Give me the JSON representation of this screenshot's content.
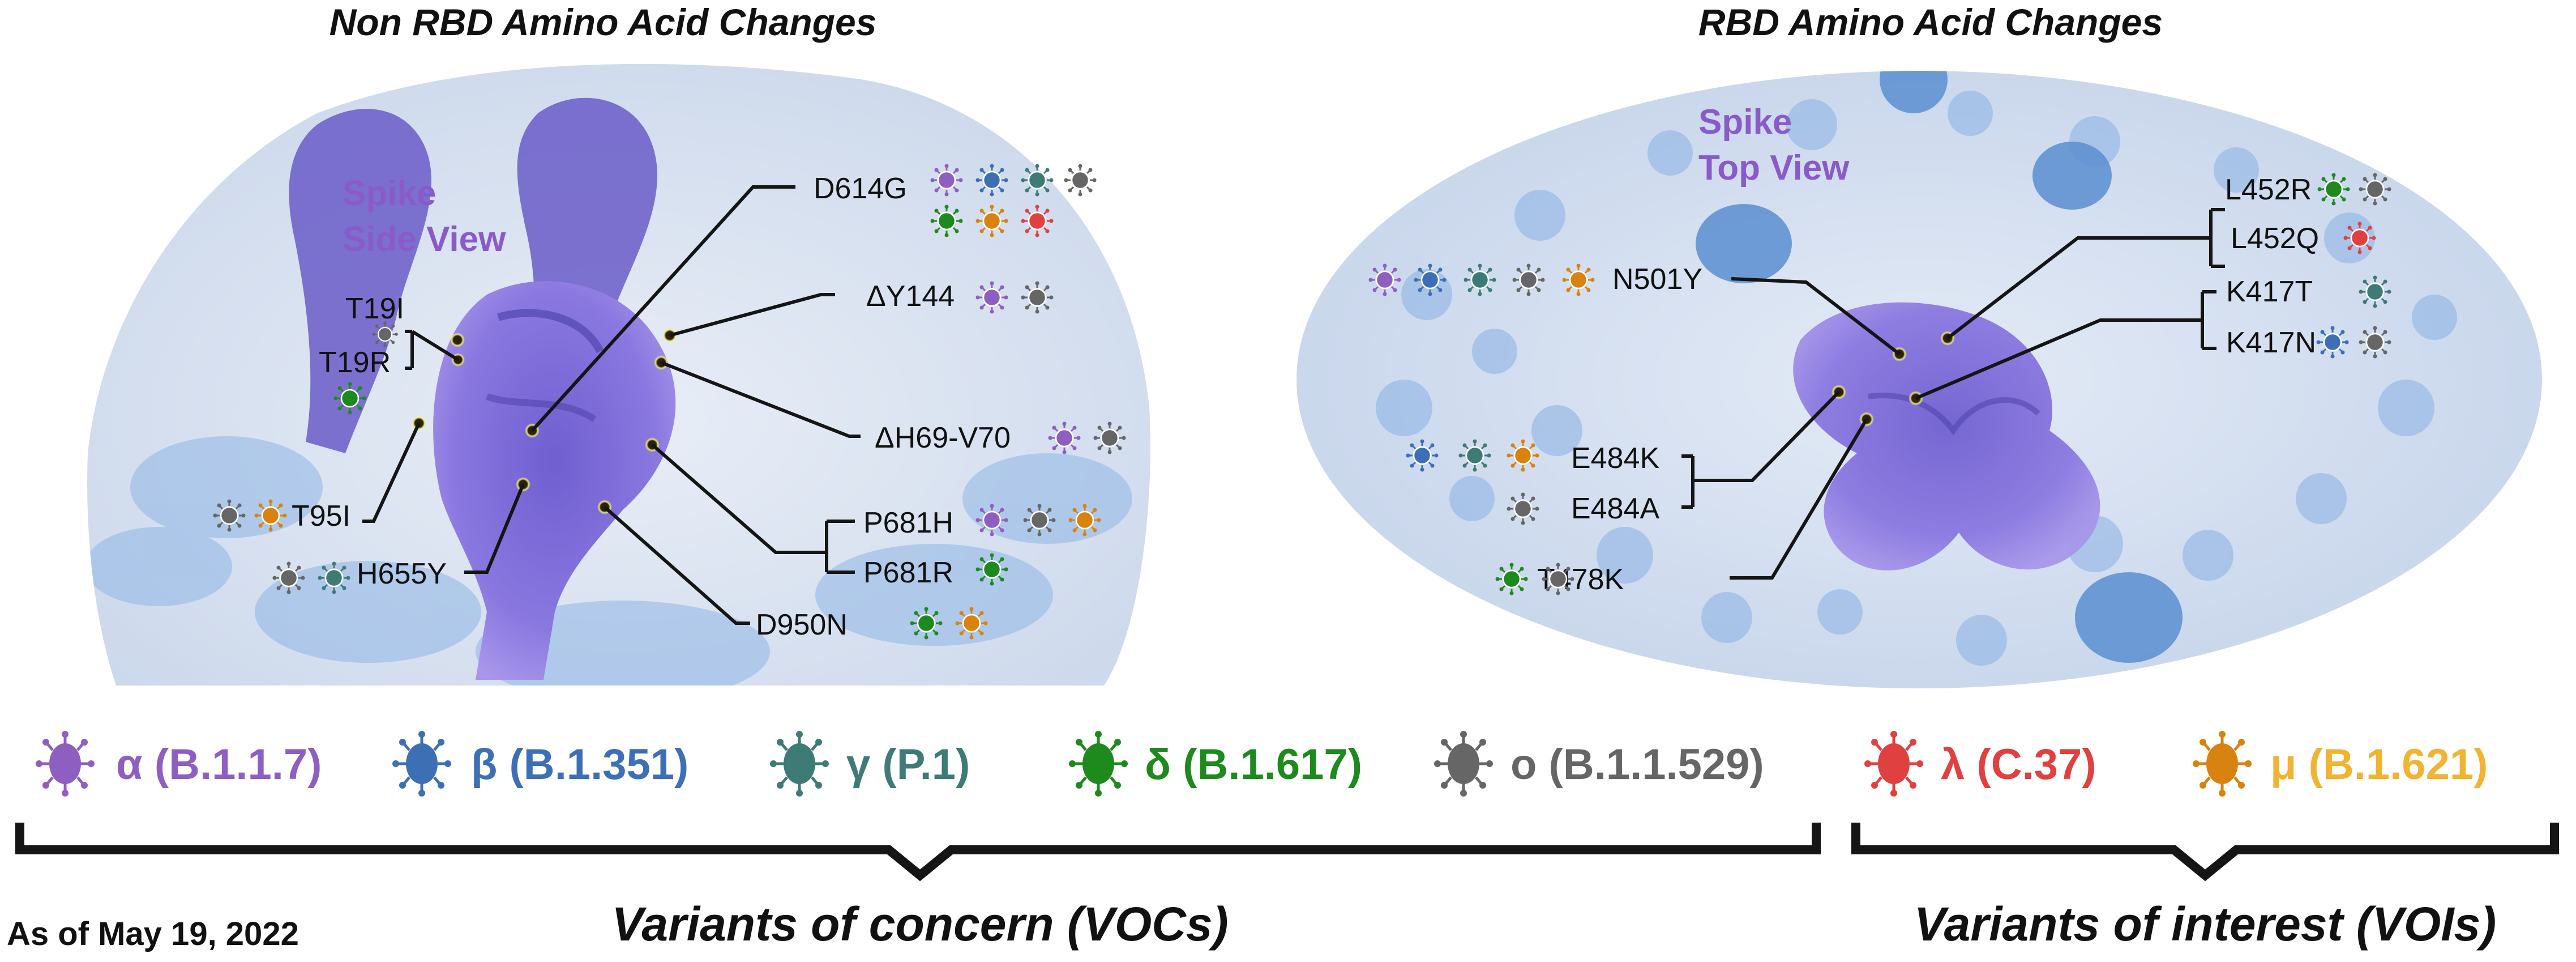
{
  "titles": {
    "non_rbd": "Non RBD Amino Acid Changes",
    "rbd": "RBD Amino Acid Changes"
  },
  "views": {
    "side_line1": "Spike",
    "side_line2": "Side View",
    "top_line1": "Spike",
    "top_line2": "Top View"
  },
  "colors": {
    "alpha": "#8e5fc0",
    "beta": "#3d6fb5",
    "gamma": "#3e7a76",
    "delta": "#1e8a1e",
    "omicron": "#666666",
    "lambda": "#e04040",
    "mu": "#d8820f",
    "mu_text": "#f0b432",
    "view_text": "#8a5bc8"
  },
  "mutations": {
    "d614g": "D614G",
    "dy144": "ΔY144",
    "dh69": "ΔH69-V70",
    "t19i": "T19I",
    "t19r": "T19R",
    "t95i": "T95I",
    "h655y": "H655Y",
    "p681h": "P681H",
    "p681r": "P681R",
    "d950n": "D950N",
    "n501y": "N501Y",
    "l452r": "L452R",
    "l452q": "L452Q",
    "k417t": "K417T",
    "k417n": "K417N",
    "e484k": "E484K",
    "e484a": "E484A",
    "t478k": "T478K"
  },
  "legend": [
    {
      "key": "alpha",
      "label": "α (B.1.1.7)",
      "color": "#8e5fc0"
    },
    {
      "key": "beta",
      "label": "β (B.1.351)",
      "color": "#3d6fb5"
    },
    {
      "key": "gamma",
      "label": "γ (P.1)",
      "color": "#3e7a76"
    },
    {
      "key": "delta",
      "label": "δ (B.1.617)",
      "color": "#1e8a1e"
    },
    {
      "key": "omicron",
      "label": "o (B.1.1.529)",
      "color": "#666666"
    },
    {
      "key": "lambda",
      "label": "λ (C.37)",
      "color": "#e04040"
    },
    {
      "key": "mu",
      "label": "μ (B.1.621)",
      "color": "#d8820f"
    }
  ],
  "groups": {
    "voc": "Variants of concern (VOCs)",
    "voi": "Variants of interest (VOIs)"
  },
  "date": "As of May 19, 2022"
}
